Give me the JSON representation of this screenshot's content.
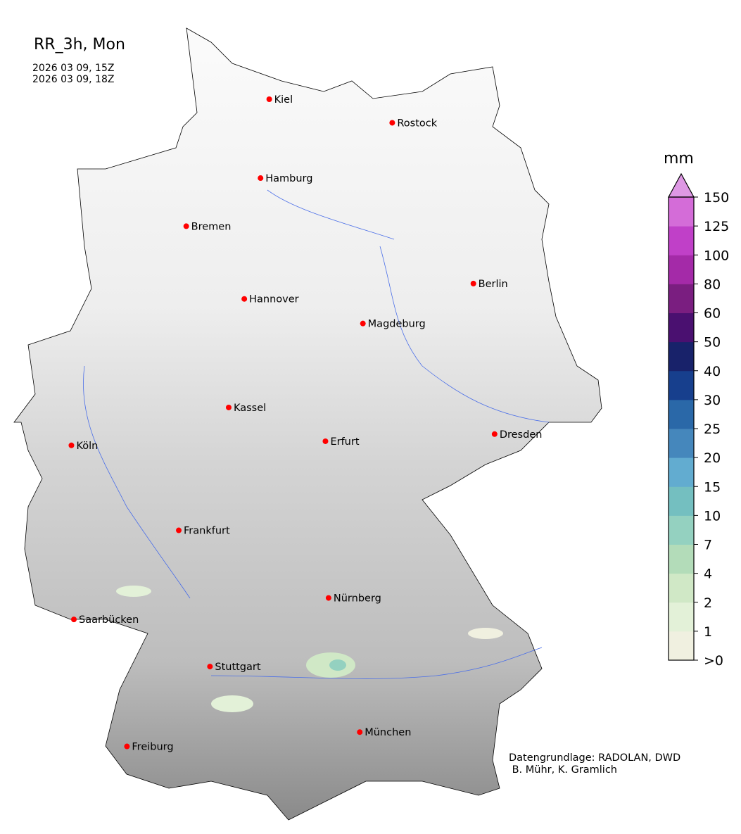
{
  "title": "RR_3h, Mon",
  "time_start": "2026 03 09, 15Z",
  "time_end": "2026 03 09, 18Z",
  "cities": [
    {
      "name": "Kiel",
      "lon": 10.13,
      "lat": 54.32
    },
    {
      "name": "Rostock",
      "lon": 12.1,
      "lat": 54.09
    },
    {
      "name": "Hamburg",
      "lon": 9.99,
      "lat": 53.55
    },
    {
      "name": "Bremen",
      "lon": 8.8,
      "lat": 53.08
    },
    {
      "name": "Berlin",
      "lon": 13.4,
      "lat": 52.52
    },
    {
      "name": "Hannover",
      "lon": 9.73,
      "lat": 52.37
    },
    {
      "name": "Magdeburg",
      "lon": 11.63,
      "lat": 52.13
    },
    {
      "name": "Kassel",
      "lon": 9.48,
      "lat": 51.31
    },
    {
      "name": "Köln",
      "lon": 6.96,
      "lat": 50.94
    },
    {
      "name": "Erfurt",
      "lon": 11.03,
      "lat": 50.98
    },
    {
      "name": "Dresden",
      "lon": 13.74,
      "lat": 51.05
    },
    {
      "name": "Frankfurt",
      "lon": 8.68,
      "lat": 50.11
    },
    {
      "name": "Nürnberg",
      "lon": 11.08,
      "lat": 49.45
    },
    {
      "name": "Saarbücken",
      "lon": 7.0,
      "lat": 49.24
    },
    {
      "name": "Stuttgart",
      "lon": 9.18,
      "lat": 48.78
    },
    {
      "name": "München",
      "lon": 11.58,
      "lat": 48.14
    },
    {
      "name": "Freiburg",
      "lon": 7.85,
      "lat": 48.0
    }
  ],
  "colorbar": {
    "unit": "mm",
    "ticks": [
      ">0",
      "1",
      "2",
      "4",
      "7",
      "10",
      "15",
      "20",
      "25",
      "30",
      "40",
      "50",
      "60",
      "80",
      "100",
      "125",
      "150"
    ],
    "colors": [
      "#f0f0e0",
      "#e3f1d8",
      "#d0e8c6",
      "#b3dcb9",
      "#94d1c0",
      "#74bfc0",
      "#62acd0",
      "#4587bc",
      "#2a68a8",
      "#173f8d",
      "#18226a",
      "#4a1070",
      "#7a1e80",
      "#a42aa8",
      "#c040c8",
      "#d46cd8"
    ],
    "extend_color": "#de98e4"
  },
  "credit_line1": "Datengrundlage: RADOLAN, DWD",
  "credit_line2": " B. Mühr, K. Gramlich"
}
